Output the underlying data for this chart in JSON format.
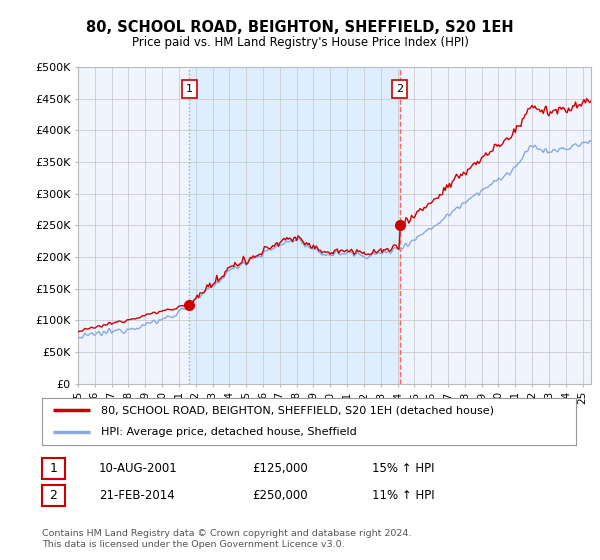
{
  "title": "80, SCHOOL ROAD, BEIGHTON, SHEFFIELD, S20 1EH",
  "subtitle": "Price paid vs. HM Land Registry's House Price Index (HPI)",
  "ylabel_ticks": [
    "£0",
    "£50K",
    "£100K",
    "£150K",
    "£200K",
    "£250K",
    "£300K",
    "£350K",
    "£400K",
    "£450K",
    "£500K"
  ],
  "ytick_values": [
    0,
    50000,
    100000,
    150000,
    200000,
    250000,
    300000,
    350000,
    400000,
    450000,
    500000
  ],
  "ylim": [
    0,
    500000
  ],
  "xlim_start": 1995.0,
  "xlim_end": 2025.5,
  "xtick_years": [
    1995,
    1996,
    1997,
    1998,
    1999,
    2000,
    2001,
    2002,
    2003,
    2004,
    2005,
    2006,
    2007,
    2008,
    2009,
    2010,
    2011,
    2012,
    2013,
    2014,
    2015,
    2016,
    2017,
    2018,
    2019,
    2020,
    2021,
    2022,
    2023,
    2024,
    2025
  ],
  "sale1_x": 2001.62,
  "sale1_y": 125000,
  "sale1_label": "1",
  "sale2_x": 2014.12,
  "sale2_y": 250000,
  "sale2_label": "2",
  "line_color_property": "#cc0000",
  "line_color_hpi": "#88aadd",
  "vline1_color": "#aaaaaa",
  "vline1_style": ":",
  "vline2_color": "#ff6666",
  "vline2_style": "--",
  "shade_color": "#ddeeff",
  "grid_color": "#cccccc",
  "plot_bg_color": "#f0f4ff",
  "background_color": "#ffffff",
  "legend_label_property": "80, SCHOOL ROAD, BEIGHTON, SHEFFIELD, S20 1EH (detached house)",
  "legend_label_hpi": "HPI: Average price, detached house, Sheffield",
  "annotation1": [
    "1",
    "10-AUG-2001",
    "£125,000",
    "15% ↑ HPI"
  ],
  "annotation2": [
    "2",
    "21-FEB-2014",
    "£250,000",
    "11% ↑ HPI"
  ],
  "footer": "Contains HM Land Registry data © Crown copyright and database right 2024.\nThis data is licensed under the Open Government Licence v3.0."
}
